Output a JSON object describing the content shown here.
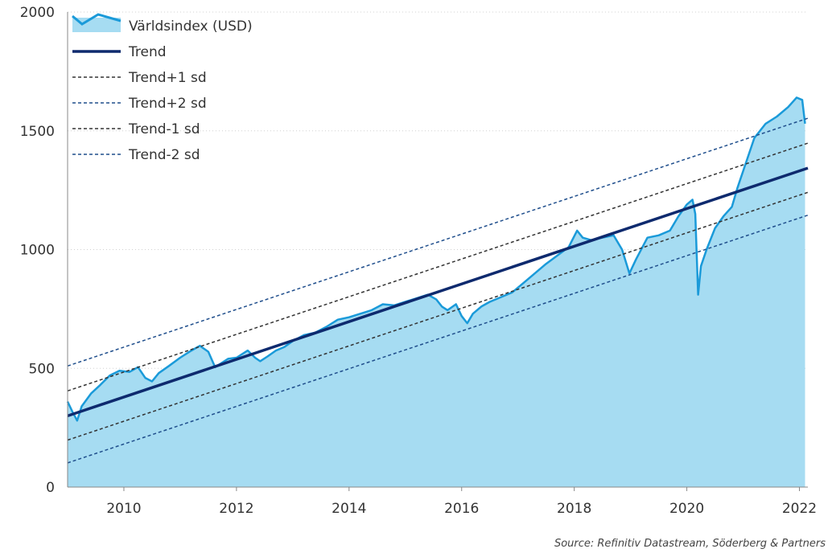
{
  "chart_data": {
    "type": "area",
    "title": "",
    "xlabel": "",
    "ylabel": "",
    "xlim": [
      2009.0,
      2022.15
    ],
    "ylim": [
      0,
      2000
    ],
    "x_ticks": [
      "2010",
      "2012",
      "2014",
      "2016",
      "2018",
      "2020",
      "2022"
    ],
    "x_tick_values": [
      2010,
      2012,
      2014,
      2016,
      2018,
      2020,
      2022
    ],
    "y_ticks": [
      "0",
      "500",
      "1000",
      "1500",
      "2000"
    ],
    "y_tick_values": [
      0,
      500,
      1000,
      1500,
      2000
    ],
    "grid": "horizontal dotted",
    "legend_position": "top-left",
    "series": [
      {
        "name": "Världsindex (USD)",
        "style": "area",
        "color": "#1a9ad9",
        "fill": "#a6dcf2",
        "x": [
          2009.0,
          2009.08,
          2009.17,
          2009.25,
          2009.42,
          2009.58,
          2009.75,
          2009.92,
          2010.1,
          2010.25,
          2010.38,
          2010.5,
          2010.62,
          2010.8,
          2011.0,
          2011.2,
          2011.35,
          2011.5,
          2011.62,
          2011.72,
          2011.85,
          2012.0,
          2012.2,
          2012.33,
          2012.42,
          2012.55,
          2012.7,
          2012.85,
          2013.0,
          2013.2,
          2013.4,
          2013.6,
          2013.8,
          2014.0,
          2014.2,
          2014.4,
          2014.6,
          2014.8,
          2015.0,
          2015.2,
          2015.4,
          2015.55,
          2015.65,
          2015.75,
          2015.9,
          2016.0,
          2016.1,
          2016.2,
          2016.35,
          2016.5,
          2016.7,
          2016.9,
          2017.1,
          2017.3,
          2017.5,
          2017.7,
          2017.9,
          2018.05,
          2018.15,
          2018.3,
          2018.5,
          2018.7,
          2018.85,
          2018.98,
          2019.1,
          2019.3,
          2019.5,
          2019.7,
          2019.85,
          2020.0,
          2020.1,
          2020.15,
          2020.2,
          2020.25,
          2020.35,
          2020.5,
          2020.65,
          2020.8,
          2020.9,
          2021.0,
          2021.2,
          2021.4,
          2021.6,
          2021.8,
          2021.95,
          2022.05,
          2022.1
        ],
        "values": [
          360,
          320,
          280,
          340,
          395,
          430,
          470,
          490,
          485,
          505,
          460,
          445,
          480,
          510,
          545,
          575,
          595,
          570,
          505,
          520,
          540,
          545,
          575,
          545,
          530,
          550,
          575,
          590,
          615,
          640,
          650,
          675,
          705,
          715,
          730,
          745,
          770,
          765,
          780,
          795,
          810,
          790,
          760,
          745,
          770,
          720,
          690,
          730,
          760,
          780,
          800,
          820,
          860,
          900,
          940,
          975,
          1010,
          1080,
          1050,
          1040,
          1050,
          1060,
          1000,
          900,
          960,
          1050,
          1060,
          1080,
          1140,
          1190,
          1210,
          1150,
          810,
          930,
          1000,
          1090,
          1140,
          1180,
          1260,
          1330,
          1470,
          1530,
          1560,
          1600,
          1640,
          1630,
          1530
        ]
      },
      {
        "name": "Trend",
        "style": "line",
        "color": "#0e2a6e",
        "x": [
          2009.0,
          2022.15
        ],
        "values": [
          300,
          1343
        ]
      },
      {
        "name": "Trend+1 sd",
        "style": "dashed",
        "color": "#333333",
        "x": [
          2009.0,
          2022.15
        ],
        "values": [
          405,
          1448
        ]
      },
      {
        "name": "Trend+2 sd",
        "style": "dashed",
        "color": "#1f4e8c",
        "x": [
          2009.0,
          2022.15
        ],
        "values": [
          510,
          1553
        ]
      },
      {
        "name": "Trend-1 sd",
        "style": "dashed",
        "color": "#333333",
        "x": [
          2009.0,
          2022.15
        ],
        "values": [
          198,
          1241
        ]
      },
      {
        "name": "Trend-2 sd",
        "style": "dashed",
        "color": "#1f4e8c",
        "x": [
          2009.0,
          2022.15
        ],
        "values": [
          102,
          1145
        ]
      }
    ],
    "source": "Source: Refinitiv Datastream, Söderberg & Partners"
  }
}
